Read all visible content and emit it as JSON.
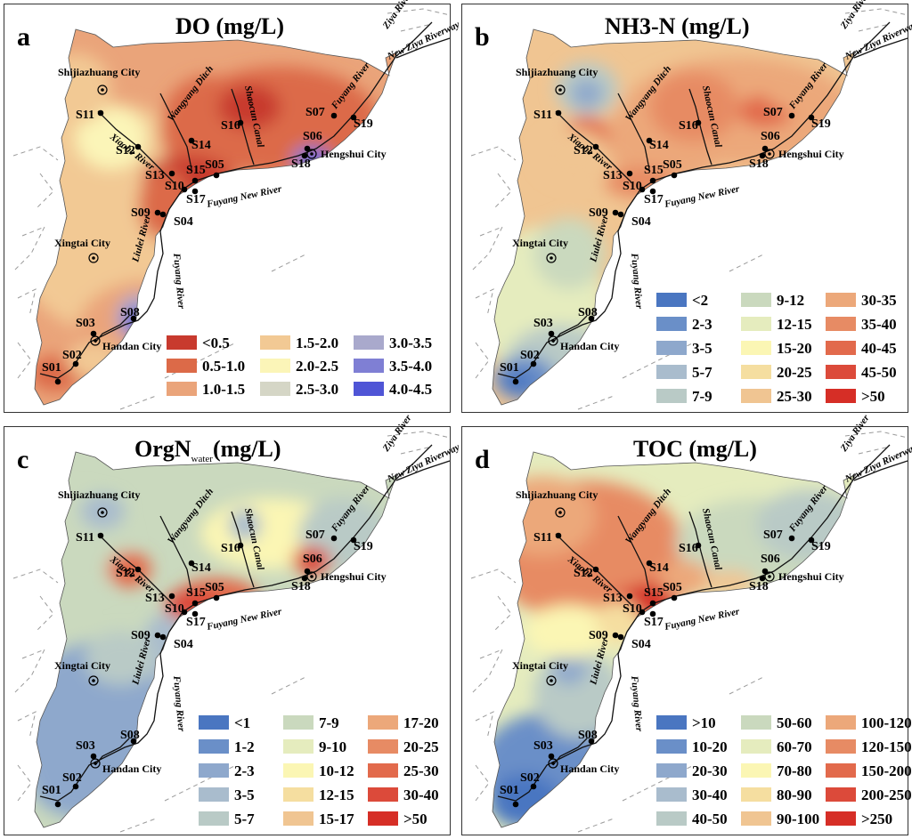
{
  "panels": [
    {
      "letter": "a",
      "title": "DO",
      "title_sub": "",
      "unit": "(mg/L)",
      "legend": [
        {
          "label": "<0.5",
          "color": "#c83a2e"
        },
        {
          "label": "0.5-1.0",
          "color": "#dc6a48"
        },
        {
          "label": "1.0-1.5",
          "color": "#eaa47a"
        },
        {
          "label": "1.5-2.0",
          "color": "#f2c994"
        },
        {
          "label": "2.0-2.5",
          "color": "#fbf5b8"
        },
        {
          "label": "2.5-3.0",
          "color": "#d5d6c6"
        },
        {
          "label": "3.0-3.5",
          "color": "#a9a9cc"
        },
        {
          "label": "3.5-4.0",
          "color": "#7f7fd4"
        },
        {
          "label": "4.0-4.5",
          "color": "#4f55d6"
        }
      ]
    },
    {
      "letter": "b",
      "title": "NH3-N",
      "title_sub": "",
      "unit": "(mg/L)",
      "legend": [
        {
          "label": "<2",
          "color": "#4a76c1"
        },
        {
          "label": "2-3",
          "color": "#6a8fc8"
        },
        {
          "label": "3-5",
          "color": "#8ea8cc"
        },
        {
          "label": "5-7",
          "color": "#a9bccd"
        },
        {
          "label": "7-9",
          "color": "#b9cac6"
        },
        {
          "label": "9-12",
          "color": "#cad9be"
        },
        {
          "label": "12-15",
          "color": "#e5ecbe"
        },
        {
          "label": "15-20",
          "color": "#fbf6b4"
        },
        {
          "label": "20-25",
          "color": "#f5dea0"
        },
        {
          "label": "25-30",
          "color": "#f0c592"
        },
        {
          "label": "30-35",
          "color": "#eca87a"
        },
        {
          "label": "35-40",
          "color": "#e78b64"
        },
        {
          "label": "40-45",
          "color": "#e26a4c"
        },
        {
          "label": "45-50",
          "color": "#dc4a3a"
        },
        {
          "label": ">50",
          "color": "#d62e26"
        }
      ]
    },
    {
      "letter": "c",
      "title": "OrgN",
      "title_sub": "water",
      "unit": "(mg/L)",
      "legend": [
        {
          "label": "<1",
          "color": "#4a76c1"
        },
        {
          "label": "1-2",
          "color": "#6a8fc8"
        },
        {
          "label": "2-3",
          "color": "#8ea8cc"
        },
        {
          "label": "3-5",
          "color": "#a9bccd"
        },
        {
          "label": "5-7",
          "color": "#b9cac6"
        },
        {
          "label": "7-9",
          "color": "#cad9be"
        },
        {
          "label": "9-10",
          "color": "#e5ecbe"
        },
        {
          "label": "10-12",
          "color": "#fbf6b4"
        },
        {
          "label": "12-15",
          "color": "#f5dea0"
        },
        {
          "label": "15-17",
          "color": "#f0c592"
        },
        {
          "label": "17-20",
          "color": "#eca87a"
        },
        {
          "label": "20-25",
          "color": "#e78b64"
        },
        {
          "label": "25-30",
          "color": "#e26a4c"
        },
        {
          "label": "30-40",
          "color": "#dc4a3a"
        },
        {
          "label": ">50",
          "color": "#d62e26"
        }
      ]
    },
    {
      "letter": "d",
      "title": "TOC",
      "title_sub": "",
      "unit": "(mg/L)",
      "legend": [
        {
          "label": ">10",
          "color": "#4a76c1"
        },
        {
          "label": "10-20",
          "color": "#6a8fc8"
        },
        {
          "label": "20-30",
          "color": "#8ea8cc"
        },
        {
          "label": "30-40",
          "color": "#a9bccd"
        },
        {
          "label": "40-50",
          "color": "#b9cac6"
        },
        {
          "label": "50-60",
          "color": "#cad9be"
        },
        {
          "label": "60-70",
          "color": "#e5ecbe"
        },
        {
          "label": "70-80",
          "color": "#fbf6b4"
        },
        {
          "label": "80-90",
          "color": "#f5dea0"
        },
        {
          "label": "90-100",
          "color": "#f0c592"
        },
        {
          "label": "100-120",
          "color": "#eca87a"
        },
        {
          "label": "120-150",
          "color": "#e78b64"
        },
        {
          "label": "150-200",
          "color": "#e26a4c"
        },
        {
          "label": "200-250",
          "color": "#dc4a3a"
        },
        {
          "label": ">250",
          "color": "#d62e26"
        }
      ]
    }
  ],
  "cities": {
    "shijiazhuang": "Shijiazhuang City",
    "hengshui": "Hengshui City",
    "xingtai": "Xingtai City",
    "handan": "Handan City"
  },
  "rivers": {
    "ziya": "Ziya River",
    "new_ziya": "New Ziya Riverway",
    "fuyang": "Fuyang River",
    "fuyang_new": "Fuyang New River",
    "xiaohe": "Xiaohe River",
    "wangyang": "Wangyang Ditch",
    "shaocun": "Shaocun Canal",
    "liulei": "Liulei River"
  },
  "sites": [
    "S01",
    "S02",
    "S03",
    "S04",
    "S05",
    "S06",
    "S07",
    "S08",
    "S09",
    "S10",
    "S11",
    "S12",
    "S13",
    "S14",
    "S15",
    "S16",
    "S17",
    "S18",
    "S19"
  ]
}
